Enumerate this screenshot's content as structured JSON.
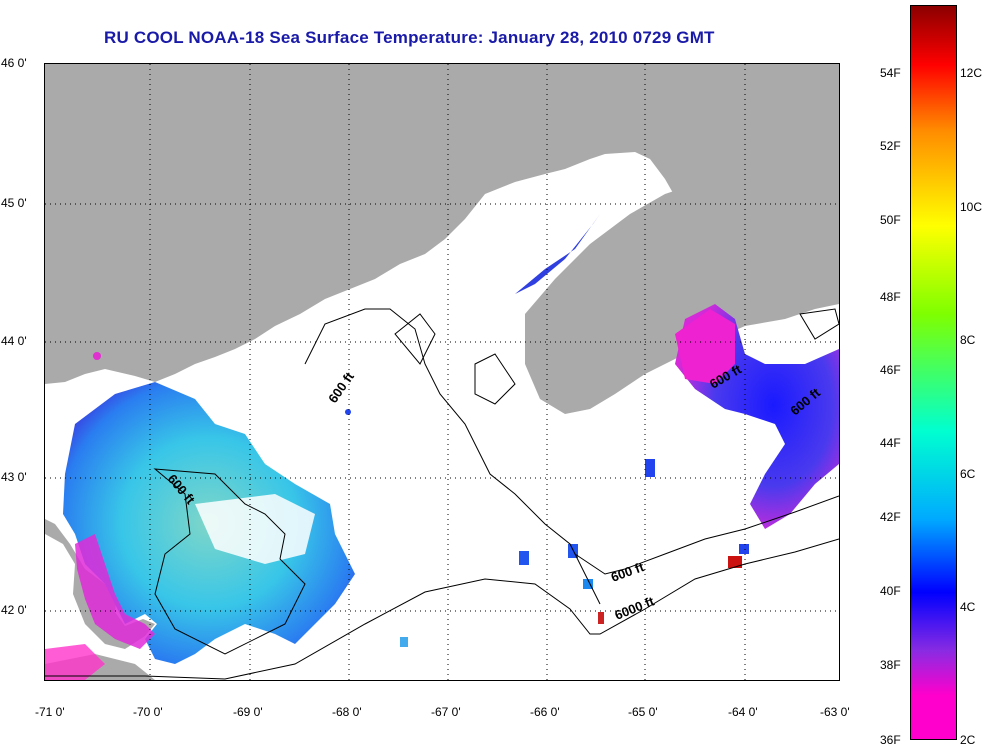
{
  "title": "RU COOL  NOAA-18  Sea Surface Temperature:  January 28, 2010 0729 GMT",
  "map": {
    "lat_labels": [
      "46 0'",
      "45 0'",
      "44 0'",
      "43 0'",
      "42 0'"
    ],
    "lon_labels": [
      "-71 0'",
      "-70 0'",
      "-69 0'",
      "-68 0'",
      "-67 0'",
      "-66 0'",
      "-65 0'",
      "-64 0'",
      "-63 0'"
    ],
    "contour_labels": [
      "600 ft",
      "600 ft",
      "600 ft",
      "600 ft",
      "6000 ft",
      "600 ft"
    ],
    "land_color": "#aaaaaa",
    "water_color": "#ffffff"
  },
  "colorbar": {
    "f_labels": [
      "54F",
      "52F",
      "50F",
      "48F",
      "46F",
      "44F",
      "42F",
      "40F",
      "38F",
      "36F"
    ],
    "c_labels": [
      "12C",
      "10C",
      "8C",
      "6C",
      "4C",
      "2C"
    ],
    "colors": [
      "#8b0000",
      "#ff0000",
      "#ff8c00",
      "#ffff00",
      "#7fff00",
      "#00ffd0",
      "#00aaff",
      "#0000ff",
      "#8a2be2",
      "#ff00cc"
    ]
  }
}
